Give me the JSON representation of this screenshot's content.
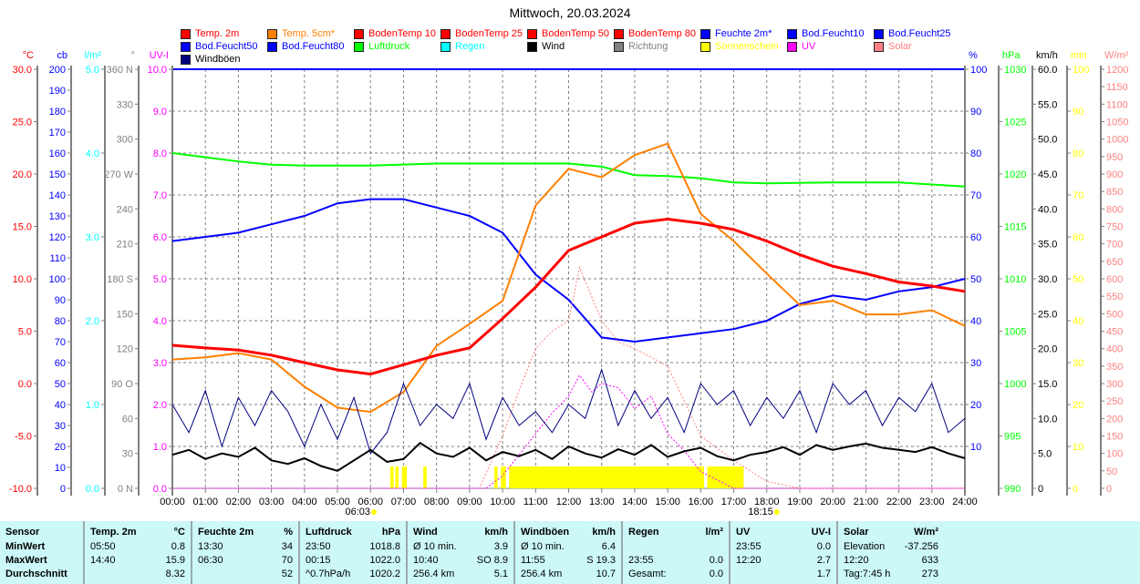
{
  "title": "Mittwoch, 20.03.2024",
  "legend": [
    {
      "label": "Temp. 2m",
      "color": "#ff0000"
    },
    {
      "label": "Temp. 5cm*",
      "color": "#ff8000"
    },
    {
      "label": "BodenTemp 10",
      "color": "#ff0000"
    },
    {
      "label": "BodenTemp 25",
      "color": "#ff0000"
    },
    {
      "label": "BodenTemp 50",
      "color": "#ff0000"
    },
    {
      "label": "BodenTemp 80",
      "color": "#ff0000"
    },
    {
      "label": "Feuchte 2m*",
      "color": "#0000ff"
    },
    {
      "label": "Bod.Feucht10",
      "color": "#0000ff"
    },
    {
      "label": "Bod.Feucht25",
      "color": "#0000ff"
    },
    {
      "label": "Bod.Feucht50",
      "color": "#0000ff"
    },
    {
      "label": "Bod.Feucht80",
      "color": "#0000ff"
    },
    {
      "label": "Luftdruck",
      "color": "#00ff00"
    },
    {
      "label": "Regen",
      "color": "#00ffff"
    },
    {
      "label": "Wind",
      "color": "#000000"
    },
    {
      "label": "Richtung",
      "color": "#808080"
    },
    {
      "label": "Sonnenschein",
      "color": "#ffff00"
    },
    {
      "label": "UV",
      "color": "#ff00ff"
    },
    {
      "label": "Solar",
      "color": "#ff8080"
    },
    {
      "label": "Windböen",
      "color": "#000080"
    }
  ],
  "chart_data": {
    "type": "line",
    "title": "Mittwoch, 20.03.2024",
    "x_ticks": [
      "00:00",
      "01:00",
      "02:00",
      "03:00",
      "04:00",
      "05:00",
      "06:00",
      "07:00",
      "08:00",
      "09:00",
      "10:00",
      "11:00",
      "12:00",
      "13:00",
      "14:00",
      "15:00",
      "16:00",
      "17:00",
      "18:00",
      "19:00",
      "20:00",
      "21:00",
      "22:00",
      "23:00",
      "24:00"
    ],
    "sunrise": {
      "label": "06:03",
      "hour": 6.05
    },
    "sunset": {
      "label": "18:15",
      "hour": 18.25
    },
    "axes": {
      "temp": {
        "unit": "°C",
        "color": "#ff0000",
        "min": -10,
        "max": 30,
        "ticks": [
          "30.0",
          "25.0",
          "20.0",
          "15.0",
          "10.0",
          "5.0",
          "0.0",
          "-5.0",
          "-10.0"
        ]
      },
      "cb": {
        "unit": "cb",
        "color": "#0000ff",
        "min": 0,
        "max": 200,
        "ticks": [
          "200",
          "190",
          "180",
          "170",
          "160",
          "150",
          "140",
          "130",
          "120",
          "110",
          "100",
          "90",
          "80",
          "70",
          "60",
          "50",
          "40",
          "30",
          "20",
          "10",
          "0"
        ]
      },
      "rain": {
        "unit": "l/m²",
        "color": "#00ffff",
        "min": 0,
        "max": 5,
        "ticks": [
          "5.0",
          "4.0",
          "3.0",
          "2.0",
          "1.0",
          "0.0"
        ]
      },
      "dir": {
        "unit": "°",
        "color": "#808080",
        "min": 0,
        "max": 360,
        "ticks": [
          "360 N",
          "330",
          "300",
          "270 W",
          "240",
          "210",
          "180 S",
          "150",
          "120",
          "90 O",
          "60",
          "30",
          "0 N"
        ]
      },
      "uv": {
        "unit": "UV-I",
        "color": "#ff00ff",
        "min": 0,
        "max": 10,
        "ticks": [
          "10.0",
          "9.0",
          "8.0",
          "7.0",
          "6.0",
          "5.0",
          "4.0",
          "3.0",
          "2.0",
          "1.0",
          "0.0"
        ]
      },
      "hum": {
        "unit": "%",
        "color": "#0000ff",
        "min": 0,
        "max": 100,
        "ticks": [
          "100",
          "90",
          "80",
          "70",
          "60",
          "50",
          "40",
          "30",
          "20",
          "10"
        ]
      },
      "hpa": {
        "unit": "hPa",
        "color": "#00ff00",
        "min": 990,
        "max": 1030,
        "ticks": [
          "1030",
          "1025",
          "1020",
          "1015",
          "1010",
          "1005",
          "1000",
          "995",
          "990"
        ]
      },
      "kmh": {
        "unit": "km/h",
        "color": "#000000",
        "min": 0,
        "max": 60,
        "ticks": [
          "60.0",
          "55.0",
          "50.0",
          "45.0",
          "40.0",
          "35.0",
          "30.0",
          "25.0",
          "20.0",
          "15.0",
          "10.0",
          "5.0",
          "0"
        ]
      },
      "min": {
        "unit": "min",
        "color": "#ffff00",
        "min": 0,
        "max": 100,
        "ticks": [
          "100",
          "90",
          "80",
          "70",
          "60",
          "50",
          "40",
          "30",
          "20",
          "10",
          "0"
        ]
      },
      "solar": {
        "unit": "W/m²",
        "color": "#ff8080",
        "min": 0,
        "max": 1200,
        "ticks": [
          "1200",
          "1150",
          "1100",
          "1050",
          "1000",
          "950",
          "900",
          "850",
          "800",
          "750",
          "700",
          "650",
          "600",
          "550",
          "500",
          "450",
          "400",
          "350",
          "300",
          "250",
          "200",
          "150",
          "100",
          "50",
          "0"
        ]
      }
    },
    "series": [
      {
        "name": "Luftdruck",
        "axis": "hpa",
        "color": "#00ff00",
        "width": 2,
        "x": [
          0,
          1,
          2,
          3,
          4,
          6,
          8,
          10,
          12,
          13,
          14,
          15,
          16,
          17,
          18,
          20,
          22,
          24
        ],
        "y": [
          1022.0,
          1021.6,
          1021.2,
          1020.9,
          1020.8,
          1020.8,
          1021.0,
          1021.0,
          1021.0,
          1020.7,
          1019.9,
          1019.8,
          1019.6,
          1019.2,
          1019.1,
          1019.2,
          1019.2,
          1018.8
        ]
      },
      {
        "name": "Feuchte 2m*",
        "axis": "hum",
        "color": "#0000ff",
        "width": 2,
        "x": [
          0,
          1,
          2,
          3,
          4,
          5,
          6,
          7,
          8,
          9,
          10,
          11,
          12,
          13,
          14,
          15,
          16,
          17,
          18,
          19,
          20,
          21,
          22,
          23,
          24
        ],
        "y": [
          59,
          60,
          61,
          63,
          65,
          68,
          69,
          69,
          67,
          65,
          61,
          51,
          45,
          36,
          35,
          36,
          37,
          38,
          40,
          44,
          46,
          45,
          47,
          48,
          50
        ]
      },
      {
        "name": "Temp. 5cm*",
        "axis": "temp",
        "color": "#ff8000",
        "width": 2,
        "x": [
          0,
          1,
          2,
          3,
          4,
          5,
          6,
          7,
          8,
          9,
          10,
          11,
          12,
          13,
          14,
          15,
          16,
          17,
          18,
          19,
          20,
          21,
          22,
          23,
          24
        ],
        "y": [
          2.3,
          2.5,
          2.9,
          2.3,
          -0.3,
          -2.3,
          -2.7,
          -0.8,
          3.6,
          5.7,
          7.9,
          17.0,
          20.5,
          19.7,
          21.8,
          22.9,
          16.2,
          13.6,
          10.5,
          7.5,
          7.9,
          6.6,
          6.6,
          7.0,
          5.5
        ]
      },
      {
        "name": "Temp. 2m",
        "axis": "temp",
        "color": "#ff0000",
        "width": 3,
        "x": [
          0,
          1,
          2,
          3,
          4,
          5,
          6,
          7,
          8,
          9,
          10,
          11,
          12,
          13,
          14,
          15,
          16,
          17,
          18,
          19,
          20,
          21,
          22,
          23,
          24
        ],
        "y": [
          3.65,
          3.4,
          3.2,
          2.7,
          2.0,
          1.3,
          0.9,
          1.8,
          2.7,
          3.4,
          6.2,
          9.2,
          12.7,
          14.0,
          15.3,
          15.7,
          15.3,
          14.7,
          13.6,
          12.3,
          11.2,
          10.5,
          9.7,
          9.3,
          8.8
        ]
      },
      {
        "name": "Solar",
        "axis": "solar",
        "color": "#ff8080",
        "width": 1,
        "dash": "2,2",
        "x": [
          0,
          9.3,
          10,
          10.5,
          11,
          11.5,
          12,
          12.33,
          13,
          13.5,
          14,
          15,
          15.5,
          16,
          17,
          18,
          19,
          24
        ],
        "y": [
          0,
          0,
          150,
          280,
          400,
          450,
          480,
          633,
          480,
          420,
          400,
          350,
          250,
          150,
          80,
          20,
          0,
          0
        ]
      },
      {
        "name": "UV",
        "axis": "uv",
        "color": "#ff00ff",
        "width": 1,
        "dash": "2,2",
        "x": [
          0,
          9.5,
          10,
          10.5,
          11,
          11.5,
          12,
          12.33,
          12.7,
          13,
          13.5,
          14,
          14.5,
          15,
          15.5,
          16,
          17,
          24
        ],
        "y": [
          0,
          0,
          0.3,
          0.8,
          1.3,
          1.8,
          2.2,
          2.7,
          2.3,
          2.5,
          2.4,
          1.9,
          2.2,
          1.3,
          0.9,
          0.4,
          0,
          0
        ]
      },
      {
        "name": "Windböen",
        "axis": "kmh",
        "color": "#000080",
        "width": 1,
        "step": 0.5,
        "y": [
          12,
          8,
          14,
          6,
          13,
          9,
          14,
          11,
          6,
          12,
          7,
          13,
          5,
          8,
          15,
          9,
          12,
          10,
          15,
          7,
          13,
          9,
          11,
          8,
          12,
          10,
          17,
          9,
          14,
          10,
          13,
          8,
          15,
          12,
          14,
          9,
          13,
          10,
          14,
          8,
          15,
          12,
          14,
          9,
          13,
          11,
          15,
          8,
          10
        ]
      },
      {
        "name": "Wind",
        "axis": "kmh",
        "color": "#000000",
        "width": 2,
        "step": 0.5,
        "y": [
          4.8,
          5.5,
          4.2,
          5.0,
          4.5,
          5.8,
          4.0,
          3.5,
          4.3,
          3.2,
          2.5,
          4.0,
          5.5,
          3.8,
          4.2,
          6.5,
          5.0,
          4.5,
          5.8,
          4.0,
          5.2,
          4.6,
          5.5,
          4.2,
          6.0,
          5.0,
          4.4,
          5.6,
          4.8,
          6.2,
          4.5,
          5.3,
          5.8,
          4.6,
          4.0,
          4.8,
          5.2,
          5.9,
          4.8,
          6.2,
          5.5,
          6.0,
          6.4,
          5.8,
          5.5,
          5.2,
          5.9,
          5.0,
          4.3
        ]
      }
    ],
    "sunshine_hours": [
      [
        6.6,
        6.7
      ],
      [
        6.75,
        6.85
      ],
      [
        6.95,
        7.1
      ],
      [
        7.6,
        7.7
      ],
      [
        9.75,
        9.85
      ],
      [
        9.95,
        10.1
      ],
      [
        10.2,
        16.1
      ],
      [
        16.2,
        17.3
      ]
    ]
  },
  "table": {
    "sensor_header": "Sensor",
    "row_labels": [
      "MinWert",
      "MaxWert",
      "Durchschnitt"
    ],
    "groups": [
      {
        "header": [
          "Temp. 2m",
          "°C"
        ],
        "rows": [
          [
            "05:50",
            "0.8"
          ],
          [
            "14:40",
            "15.9"
          ],
          [
            "",
            "8.32"
          ]
        ]
      },
      {
        "header": [
          "Feuchte 2m",
          "%"
        ],
        "rows": [
          [
            "13:30",
            "34"
          ],
          [
            "06:30",
            "70"
          ],
          [
            "",
            "52"
          ]
        ]
      },
      {
        "header": [
          "Luftdruck",
          "hPa"
        ],
        "rows": [
          [
            "23:50",
            "1018.8"
          ],
          [
            "00:15",
            "1022.0"
          ],
          [
            "^0.7hPa/h",
            "1020.2"
          ]
        ]
      },
      {
        "header": [
          "Wind",
          "km/h"
        ],
        "rows": [
          [
            "Ø 10 min.",
            "3.9"
          ],
          [
            "10:40",
            "SO 8.9"
          ],
          [
            "256.4 km",
            "5.1"
          ]
        ]
      },
      {
        "header": [
          "Windböen",
          "km/h"
        ],
        "rows": [
          [
            "Ø 10 min.",
            "6.4"
          ],
          [
            "11:55",
            "S 19.3"
          ],
          [
            "256.4 km",
            "10.7"
          ]
        ]
      },
      {
        "header": [
          "Regen",
          "l/m²"
        ],
        "rows": [
          [
            "",
            ""
          ],
          [
            "23:55",
            "0.0"
          ],
          [
            "Gesamt:",
            "0.0"
          ]
        ]
      },
      {
        "header": [
          "UV",
          "UV-I"
        ],
        "rows": [
          [
            "23:55",
            "0.0"
          ],
          [
            "12:20",
            "2.7"
          ],
          [
            "",
            "1.7"
          ]
        ]
      },
      {
        "header": [
          "Solar",
          "W/m²"
        ],
        "rows": [
          [
            "Elevation",
            "-37.256"
          ],
          [
            "12:20",
            "633"
          ],
          [
            "Tag:7:45 h",
            "273"
          ]
        ]
      }
    ]
  }
}
